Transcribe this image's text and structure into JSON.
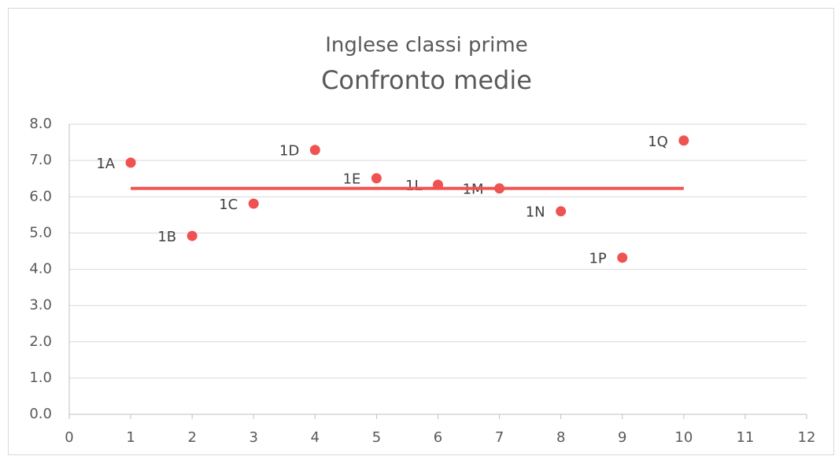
{
  "chart_data": {
    "type": "scatter",
    "subtitle": "Inglese classi prime",
    "title": "Confronto medie",
    "xlim": [
      0,
      12
    ],
    "xticks": [
      0,
      1,
      2,
      3,
      4,
      5,
      6,
      7,
      8,
      9,
      10,
      11,
      12
    ],
    "ylim": [
      0,
      8
    ],
    "yticks": [
      {
        "value": 0,
        "label": "0.0"
      },
      {
        "value": 1,
        "label": "1.0"
      },
      {
        "value": 2,
        "label": "2.0"
      },
      {
        "value": 3,
        "label": "3.0"
      },
      {
        "value": 4,
        "label": "4.0"
      },
      {
        "value": 5,
        "label": "5.0"
      },
      {
        "value": 6,
        "label": "6.0"
      },
      {
        "value": 7,
        "label": "7.0"
      },
      {
        "value": 8,
        "label": "8.0"
      }
    ],
    "grid": true,
    "series": [
      {
        "color": "#f05252",
        "mode": "markers",
        "x": [
          1,
          2,
          3,
          4,
          5,
          6,
          7,
          8,
          9,
          10
        ],
        "values": [
          6.94,
          4.92,
          5.81,
          7.29,
          6.51,
          6.33,
          6.23,
          5.6,
          4.32,
          7.55
        ],
        "point_labels": [
          "1A",
          "1B",
          "1C",
          "1D",
          "1E",
          "1L",
          "1M",
          "1N",
          "1P",
          "1Q"
        ]
      },
      {
        "color": "#f05252",
        "mode": "line",
        "x": [
          1,
          10
        ],
        "values": [
          6.23,
          6.23
        ]
      }
    ]
  }
}
